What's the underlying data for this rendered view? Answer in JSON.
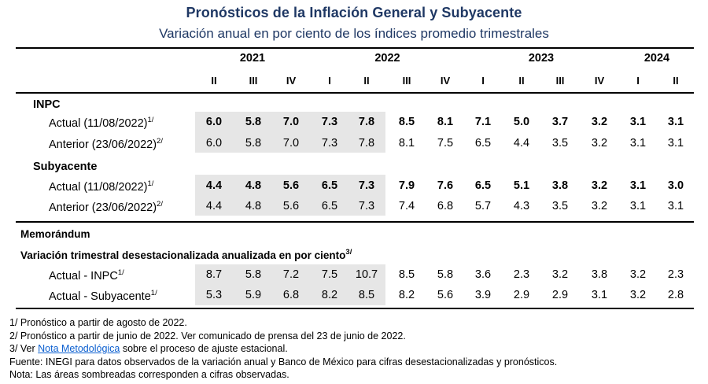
{
  "header": {
    "title": "Pronósticos de la Inflación General y Subyacente",
    "subtitle": "Variación anual en por ciento de los índices promedio trimestrales"
  },
  "years": [
    {
      "label": "2021",
      "span": [
        0,
        2
      ]
    },
    {
      "label": "2022",
      "span": [
        3,
        6
      ]
    },
    {
      "label": "2023",
      "span": [
        7,
        10
      ]
    },
    {
      "label": "2024",
      "span": [
        11,
        12
      ]
    }
  ],
  "quarters": [
    "II",
    "III",
    "IV",
    "I",
    "II",
    "III",
    "IV",
    "I",
    "II",
    "III",
    "IV",
    "I",
    "II"
  ],
  "observed_columns": 5,
  "sections": [
    {
      "title": "INPC",
      "rows": [
        {
          "label": "Actual (11/08/2022)",
          "note": "1/",
          "bold": true,
          "shaded": true,
          "values": [
            "6.0",
            "5.8",
            "7.0",
            "7.3",
            "7.8",
            "8.5",
            "8.1",
            "7.1",
            "5.0",
            "3.7",
            "3.2",
            "3.1",
            "3.1"
          ]
        },
        {
          "label": "Anterior (23/06/2022)",
          "note": "2/",
          "bold": false,
          "shaded": true,
          "values": [
            "6.0",
            "5.8",
            "7.0",
            "7.3",
            "7.8",
            "8.1",
            "7.5",
            "6.5",
            "4.4",
            "3.5",
            "3.2",
            "3.1",
            "3.1"
          ]
        }
      ]
    },
    {
      "title": "Subyacente",
      "rows": [
        {
          "label": "Actual (11/08/2022)",
          "note": "1/",
          "bold": true,
          "shaded": true,
          "values": [
            "4.4",
            "4.8",
            "5.6",
            "6.5",
            "7.3",
            "7.9",
            "7.6",
            "6.5",
            "5.1",
            "3.8",
            "3.2",
            "3.1",
            "3.0"
          ]
        },
        {
          "label": "Anterior (23/06/2022)",
          "note": "2/",
          "bold": false,
          "shaded": true,
          "values": [
            "4.4",
            "4.8",
            "5.6",
            "6.5",
            "7.3",
            "7.4",
            "6.8",
            "5.7",
            "4.3",
            "3.5",
            "3.2",
            "3.1",
            "3.1"
          ]
        }
      ]
    }
  ],
  "memo": {
    "title": "Memorándum",
    "subtitle": "Variación trimestral desestacionalizada anualizada en por ciento",
    "subtitle_note": "3/",
    "rows": [
      {
        "label": "Actual - INPC",
        "note": "1/",
        "bold": false,
        "shaded": true,
        "values": [
          "8.7",
          "5.8",
          "7.2",
          "7.5",
          "10.7",
          "8.5",
          "5.8",
          "3.6",
          "2.3",
          "3.2",
          "3.8",
          "3.2",
          "2.3"
        ]
      },
      {
        "label": "Actual - Subyacente",
        "note": "1/",
        "bold": false,
        "shaded": true,
        "values": [
          "5.3",
          "5.9",
          "6.8",
          "8.2",
          "8.5",
          "8.2",
          "5.6",
          "3.9",
          "2.9",
          "2.9",
          "3.1",
          "3.2",
          "2.8"
        ]
      }
    ]
  },
  "footnotes": {
    "n1": "1/ Pronóstico a partir de agosto de 2022.",
    "n2": "2/ Pronóstico a partir de junio de 2022. Ver comunicado de prensa del 23 de junio de 2022.",
    "n3_prefix": "3/ Ver ",
    "n3_link": "Nota Metodológica",
    "n3_suffix": " sobre el proceso de ajuste estacional.",
    "fuente": "Fuente: INEGI para datos observados de la variación anual y Banco de México para cifras desestacionalizadas y pronósticos.",
    "nota": "Nota: Las áreas sombreadas corresponden a cifras observadas."
  },
  "colors": {
    "title": "#1f3864",
    "shade": "#e6e6e6",
    "link": "#0b5fd0"
  }
}
